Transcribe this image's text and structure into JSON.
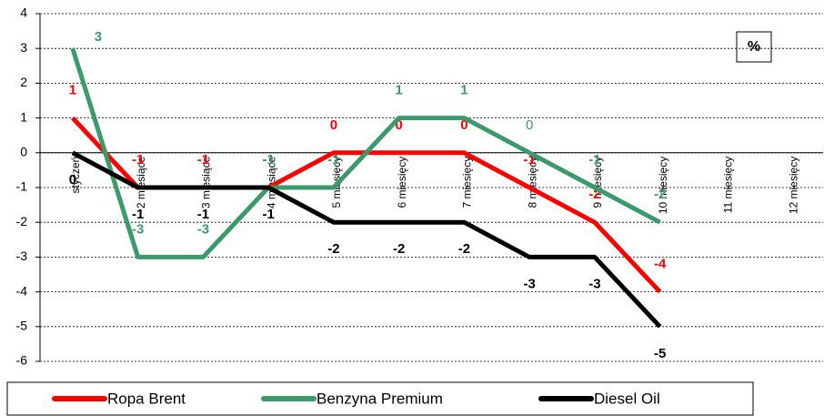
{
  "chart_data": {
    "type": "line",
    "categories": [
      "styczeń",
      "2 miesiące",
      "3 miesiące",
      "4 miesiące",
      "5 miesięcy",
      "6 miesięcy",
      "7 miesięcy",
      "8 miesięcy",
      "9 miesięcy",
      "10 miesięcy",
      "11 miesięcy",
      "12 miesięcy"
    ],
    "series": [
      {
        "name": "Ropa Brent",
        "color": "#ff0000",
        "values": [
          1,
          -1,
          -1,
          -1,
          0,
          0,
          0,
          -1,
          -2,
          -4,
          null,
          null
        ]
      },
      {
        "name": "Benzyna Premium",
        "color": "#3a9a6a",
        "values": [
          3,
          -3,
          -3,
          -1,
          -1,
          1,
          1,
          0,
          -1,
          -2,
          null,
          null
        ]
      },
      {
        "name": "Diesel Oil",
        "color": "#000000",
        "values": [
          0,
          -1,
          -1,
          -1,
          -2,
          -2,
          -2,
          -3,
          -3,
          -5,
          null,
          null
        ]
      }
    ],
    "ylim": [
      -6,
      4
    ],
    "yticks": [
      -6,
      -5,
      -4,
      -3,
      -2,
      -1,
      0,
      1,
      2,
      3,
      4
    ],
    "unit_label": "%",
    "grid": true,
    "legend": "bottom"
  }
}
